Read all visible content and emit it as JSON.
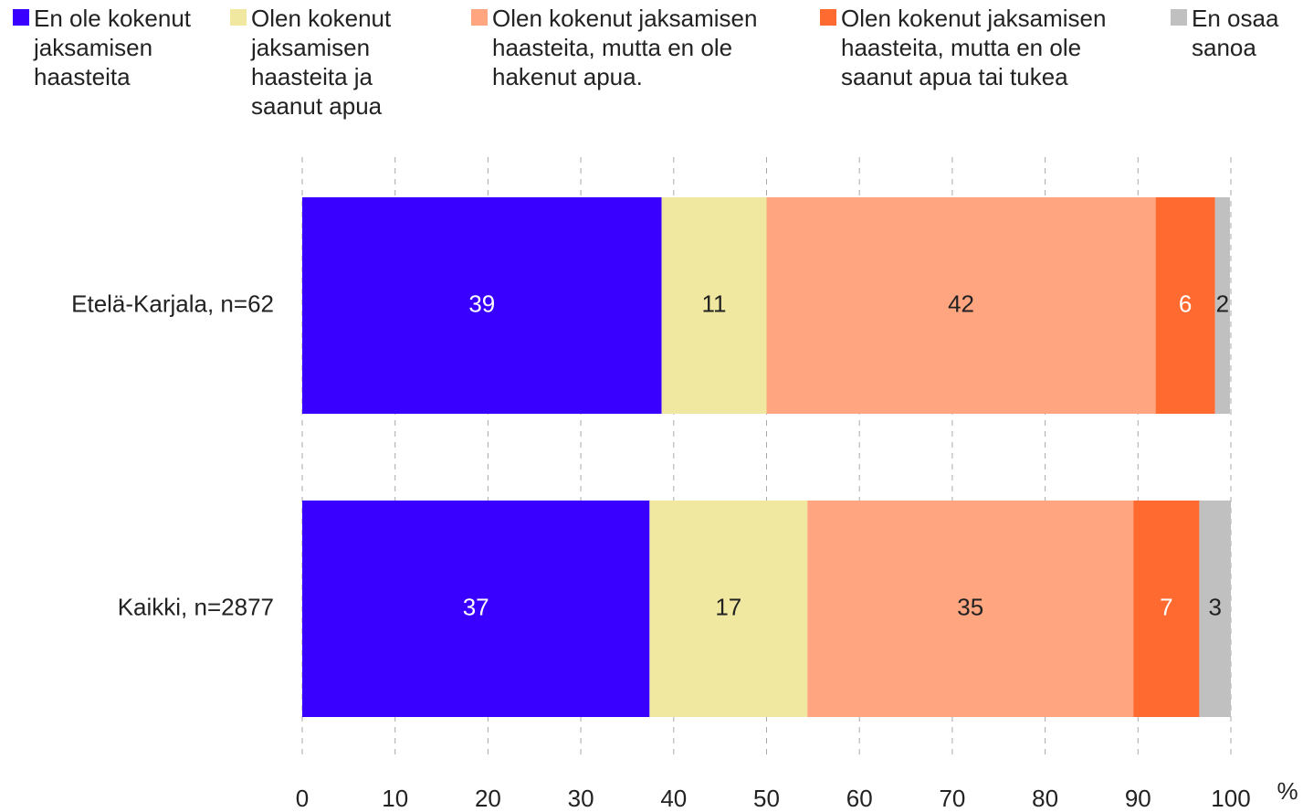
{
  "chart_data": {
    "type": "stacked_barh",
    "categories": [
      "Etelä-Karjala, n=62",
      "Kaikki, n=2877"
    ],
    "series": [
      {
        "name": "En ole kokenut jaksamisen haasteita",
        "color": "#3a00ff",
        "label_color": "#ffffff",
        "values": [
          38.7,
          37.4
        ],
        "value_labels": [
          "39",
          "37"
        ]
      },
      {
        "name": "Olen kokenut jaksamisen haasteita ja saanut apua",
        "color": "#f0e8a0",
        "label_color": "#222222",
        "values": [
          11.3,
          17.0
        ],
        "value_labels": [
          "11",
          "17"
        ]
      },
      {
        "name": "Olen kokenut jaksamisen haasteita, mutta en ole hakenut apua.",
        "color": "#ffa580",
        "label_color": "#222222",
        "values": [
          41.9,
          35.1
        ],
        "value_labels": [
          "42",
          "35"
        ]
      },
      {
        "name": "Olen kokenut jaksamisen haasteita, mutta en ole saanut apua tai tukea",
        "color": "#ff6a30",
        "label_color": "#ffffff",
        "values": [
          6.4,
          7.1
        ],
        "value_labels": [
          "6",
          "7"
        ]
      },
      {
        "name": "En osaa sanoa",
        "color": "#c0c0c0",
        "label_color": "#222222",
        "values": [
          1.6,
          3.4
        ],
        "value_labels": [
          "2",
          "3"
        ]
      }
    ],
    "xlabel": "%",
    "xlim": [
      0,
      100
    ],
    "xticks": [
      0,
      10,
      20,
      30,
      40,
      50,
      60,
      70,
      80,
      90,
      100
    ],
    "grid": true,
    "legend": "top"
  }
}
